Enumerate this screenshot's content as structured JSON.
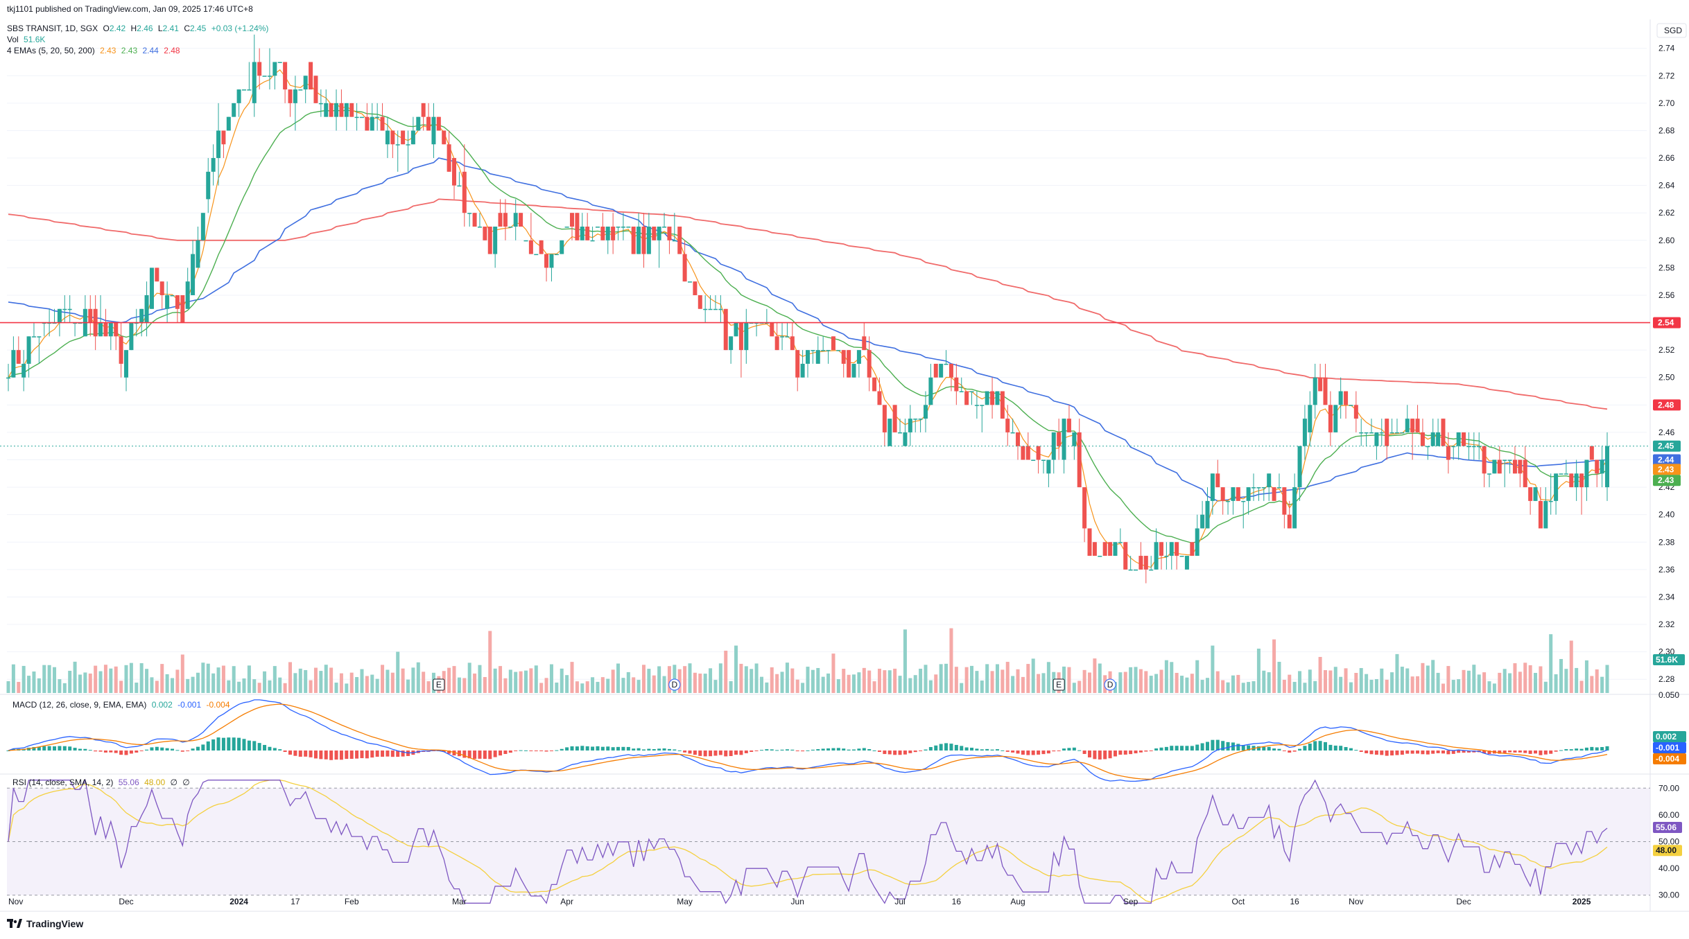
{
  "header": {
    "published": "tkj1101 published on TradingView.com, Jan 09, 2025 17:46 UTC+8",
    "symbol": "SBS TRANSIT, 1D, SGX",
    "o_label": "O",
    "o_val": "2.42",
    "h_label": "H",
    "h_val": "2.46",
    "l_label": "L",
    "l_val": "2.41",
    "c_label": "C",
    "c_val": "2.45",
    "change": "+0.03 (+1.24%)",
    "vol_label": "Vol",
    "vol_val": "51.6K",
    "ema_label": "4 EMAs (5, 20, 50, 200)",
    "ema5": "2.43",
    "ema20": "2.43",
    "ema50": "2.44",
    "ema200": "2.48"
  },
  "macd_legend": {
    "label": "MACD (12, 26, close, 9, EMA, EMA)",
    "v1": "0.002",
    "v2": "-0.001",
    "v3": "-0.004"
  },
  "rsi_legend": {
    "label": "RSI (14, close, SMA, 14, 2)",
    "v1": "55.06",
    "v2": "48.00",
    "v3": "∅",
    "v4": "∅"
  },
  "currency": "SGD",
  "footer": {
    "brand": "TradingView",
    "logo_icon": "tradingview-logo-icon"
  },
  "colors": {
    "up": "#26a69a",
    "down": "#ef5350",
    "ema5": "#f7931a",
    "ema20": "#4caf50",
    "ema50": "#3f6fe0",
    "ema200": "#f06a6a",
    "hline": "#f23645",
    "rsi": "#7e57c2",
    "rsi_ma": "#f4d03f"
  },
  "chart_data": [
    {
      "type": "candlestick",
      "title": "SBS TRANSIT, 1D, SGX",
      "ylim": [
        2.27,
        2.755
      ],
      "y_ticks": [
        "2.74",
        "2.72",
        "2.70",
        "2.68",
        "2.66",
        "2.64",
        "2.62",
        "2.60",
        "2.58",
        "2.56",
        "2.54",
        "2.52",
        "2.50",
        "2.48",
        "2.46",
        "2.44",
        "2.42",
        "2.40",
        "2.38",
        "2.36",
        "2.34",
        "2.32",
        "2.30",
        "2.28"
      ],
      "x_ticks": [
        "Nov",
        "Dec",
        "2024",
        "17",
        "Feb",
        "Mar",
        "Apr",
        "May",
        "Jun",
        "Jul",
        "16",
        "Aug",
        "Sep",
        "Oct",
        "16",
        "Nov",
        "Dec",
        "2025"
      ],
      "horizontal_line": 2.54,
      "price_tags": [
        {
          "label": "2.54",
          "value": 2.54,
          "color": "#f23645"
        },
        {
          "label": "2.48",
          "value": 2.48,
          "color": "#f23645"
        },
        {
          "label": "2.45",
          "value": 2.45,
          "color": "#26a69a"
        },
        {
          "label": "2.44",
          "value": 2.44,
          "color": "#3f6fe0"
        },
        {
          "label": "2.43",
          "value": 2.433,
          "color": "#f7931a"
        },
        {
          "label": "2.43",
          "value": 2.425,
          "color": "#4caf50"
        }
      ],
      "volume_tag": "51.6K",
      "event_markers": [
        {
          "label": "E",
          "date": "2024-02-26"
        },
        {
          "label": "D",
          "date": "2024-04-30"
        },
        {
          "label": "E",
          "date": "2024-08-13"
        },
        {
          "label": "D",
          "date": "2024-08-27"
        }
      ],
      "anchors": [
        [
          "2023-10-31",
          2.51
        ],
        [
          "2023-11-06",
          2.53
        ],
        [
          "2023-11-13",
          2.54
        ],
        [
          "2023-11-17",
          2.55
        ],
        [
          "2023-11-22",
          2.54
        ],
        [
          "2023-11-27",
          2.53
        ],
        [
          "2023-11-30",
          2.52
        ],
        [
          "2023-12-05",
          2.54
        ],
        [
          "2023-12-08",
          2.57
        ],
        [
          "2023-12-13",
          2.56
        ],
        [
          "2023-12-18",
          2.55
        ],
        [
          "2023-12-20",
          2.59
        ],
        [
          "2023-12-26",
          2.66
        ],
        [
          "2023-12-29",
          2.69
        ],
        [
          "2024-01-03",
          2.71
        ],
        [
          "2024-01-08",
          2.73
        ],
        [
          "2024-01-12",
          2.72
        ],
        [
          "2024-01-16",
          2.71
        ],
        [
          "2024-01-19",
          2.72
        ],
        [
          "2024-01-24",
          2.7
        ],
        [
          "2024-01-29",
          2.69
        ],
        [
          "2024-02-02",
          2.69
        ],
        [
          "2024-02-08",
          2.68
        ],
        [
          "2024-02-15",
          2.67
        ],
        [
          "2024-02-20",
          2.68
        ],
        [
          "2024-02-26",
          2.69
        ],
        [
          "2024-03-01",
          2.63
        ],
        [
          "2024-03-05",
          2.62
        ],
        [
          "2024-03-08",
          2.6
        ],
        [
          "2024-03-13",
          2.6
        ],
        [
          "2024-03-18",
          2.61
        ],
        [
          "2024-03-22",
          2.6
        ],
        [
          "2024-03-27",
          2.59
        ],
        [
          "2024-04-02",
          2.61
        ],
        [
          "2024-04-08",
          2.6
        ],
        [
          "2024-04-12",
          2.61
        ],
        [
          "2024-04-18",
          2.6
        ],
        [
          "2024-04-23",
          2.6
        ],
        [
          "2024-04-26",
          2.61
        ],
        [
          "2024-04-30",
          2.61
        ],
        [
          "2024-05-03",
          2.56
        ],
        [
          "2024-05-07",
          2.55
        ],
        [
          "2024-05-10",
          2.56
        ],
        [
          "2024-05-14",
          2.53
        ],
        [
          "2024-05-20",
          2.53
        ],
        [
          "2024-05-24",
          2.53
        ],
        [
          "2024-05-28",
          2.53
        ],
        [
          "2024-06-03",
          2.51
        ],
        [
          "2024-06-07",
          2.52
        ],
        [
          "2024-06-12",
          2.52
        ],
        [
          "2024-06-17",
          2.51
        ],
        [
          "2024-06-20",
          2.51
        ],
        [
          "2024-06-25",
          2.47
        ],
        [
          "2024-06-28",
          2.47
        ],
        [
          "2024-07-03",
          2.46
        ],
        [
          "2024-07-08",
          2.49
        ],
        [
          "2024-07-11",
          2.51
        ],
        [
          "2024-07-16",
          2.49
        ],
        [
          "2024-07-19",
          2.48
        ],
        [
          "2024-07-24",
          2.49
        ],
        [
          "2024-07-29",
          2.47
        ],
        [
          "2024-08-02",
          2.45
        ],
        [
          "2024-08-07",
          2.43
        ],
        [
          "2024-08-13",
          2.46
        ],
        [
          "2024-08-16",
          2.46
        ],
        [
          "2024-08-21",
          2.38
        ],
        [
          "2024-08-26",
          2.38
        ],
        [
          "2024-08-30",
          2.37
        ],
        [
          "2024-09-04",
          2.36
        ],
        [
          "2024-09-09",
          2.37
        ],
        [
          "2024-09-13",
          2.37
        ],
        [
          "2024-09-18",
          2.38
        ],
        [
          "2024-09-24",
          2.42
        ],
        [
          "2024-09-27",
          2.42
        ],
        [
          "2024-10-02",
          2.42
        ],
        [
          "2024-10-08",
          2.42
        ],
        [
          "2024-10-11",
          2.42
        ],
        [
          "2024-10-15",
          2.4
        ],
        [
          "2024-10-18",
          2.48
        ],
        [
          "2024-10-22",
          2.49
        ],
        [
          "2024-10-25",
          2.46
        ],
        [
          "2024-10-29",
          2.48
        ],
        [
          "2024-11-01",
          2.47
        ],
        [
          "2024-11-06",
          2.46
        ],
        [
          "2024-11-11",
          2.45
        ],
        [
          "2024-11-15",
          2.46
        ],
        [
          "2024-11-20",
          2.45
        ],
        [
          "2024-11-25",
          2.45
        ],
        [
          "2024-11-29",
          2.45
        ],
        [
          "2024-12-04",
          2.44
        ],
        [
          "2024-12-09",
          2.44
        ],
        [
          "2024-12-13",
          2.43
        ],
        [
          "2024-12-18",
          2.42
        ],
        [
          "2024-12-23",
          2.39
        ],
        [
          "2024-12-26",
          2.43
        ],
        [
          "2024-12-31",
          2.43
        ],
        [
          "2025-01-03",
          2.43
        ],
        [
          "2025-01-07",
          2.43
        ],
        [
          "2025-01-09",
          2.45
        ]
      ],
      "ema200_anchors": [
        [
          "2023-10-31",
          2.619
        ],
        [
          "2023-12-15",
          2.6
        ],
        [
          "2024-01-15",
          2.6
        ],
        [
          "2024-02-26",
          2.63
        ],
        [
          "2024-04-30",
          2.618
        ],
        [
          "2024-06-30",
          2.59
        ],
        [
          "2024-08-15",
          2.555
        ],
        [
          "2024-09-15",
          2.52
        ],
        [
          "2024-10-20",
          2.5
        ],
        [
          "2024-12-01",
          2.495
        ],
        [
          "2025-01-09",
          2.477
        ]
      ],
      "ema50_anchors": [
        [
          "2023-10-31",
          2.555
        ],
        [
          "2023-11-30",
          2.54
        ],
        [
          "2023-12-25",
          2.56
        ],
        [
          "2024-01-20",
          2.62
        ],
        [
          "2024-02-26",
          2.66
        ],
        [
          "2024-04-15",
          2.62
        ],
        [
          "2024-05-15",
          2.58
        ],
        [
          "2024-06-15",
          2.53
        ],
        [
          "2024-07-15",
          2.51
        ],
        [
          "2024-08-15",
          2.48
        ],
        [
          "2024-09-25",
          2.41
        ],
        [
          "2024-10-20",
          2.42
        ],
        [
          "2024-11-15",
          2.445
        ],
        [
          "2024-12-20",
          2.435
        ],
        [
          "2025-01-09",
          2.44
        ]
      ],
      "legend": [
        "EMA 5",
        "EMA 20",
        "EMA 50",
        "EMA 200"
      ]
    },
    {
      "type": "bar",
      "title": "Vol",
      "note": "volume histogram along price pane bottom"
    },
    {
      "type": "line",
      "title": "MACD (12, 26, close, 9, EMA, EMA)",
      "ylim": [
        -0.02,
        0.05
      ],
      "y_ticks": [
        "0.050"
      ],
      "tags": [
        {
          "label": "0.002",
          "color": "#26a69a"
        },
        {
          "label": "-0.001",
          "color": "#2962ff"
        },
        {
          "label": "-0.004",
          "color": "#f57c00"
        }
      ]
    },
    {
      "type": "line",
      "title": "RSI (14, close, SMA, 14, 2)",
      "ylim": [
        25,
        75
      ],
      "y_ticks": [
        "70.00",
        "60.00",
        "50.00",
        "40.00",
        "30.00"
      ],
      "bands": [
        30,
        50,
        70
      ],
      "tags": [
        {
          "label": "55.06",
          "color": "#7e57c2"
        },
        {
          "label": "48.00",
          "color": "#f4d03f"
        }
      ]
    }
  ]
}
